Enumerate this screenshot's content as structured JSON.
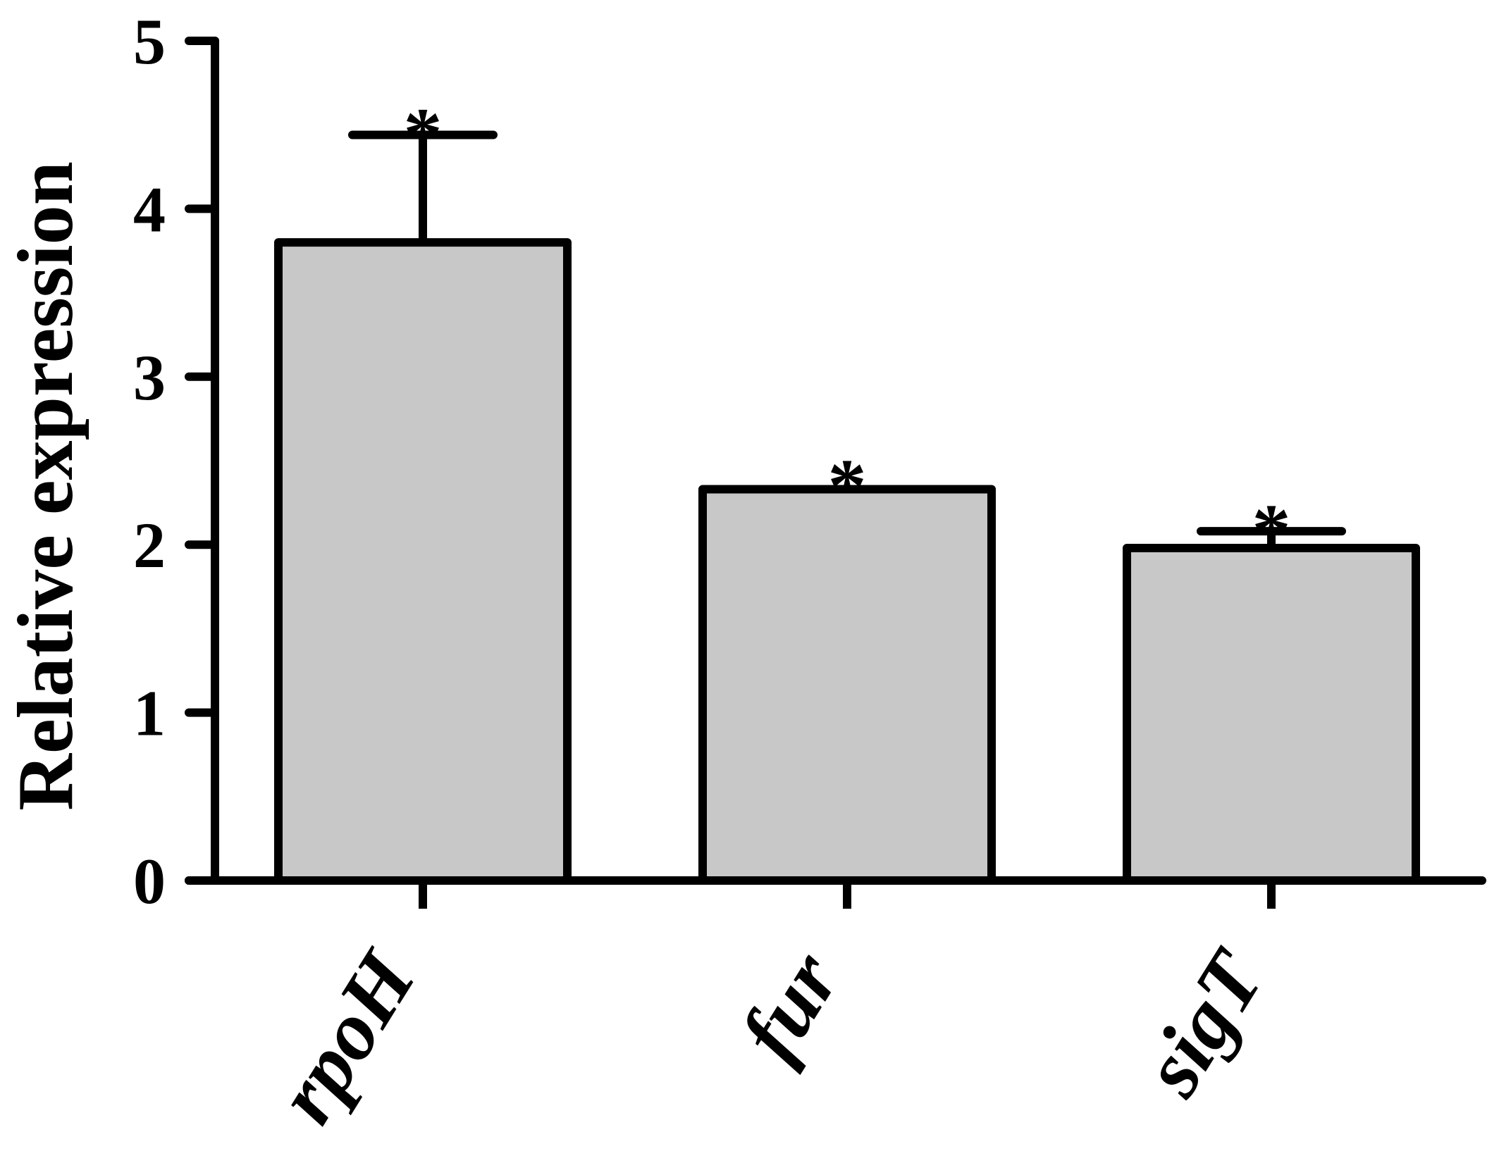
{
  "chart_data": {
    "type": "bar",
    "title": "",
    "xlabel": "",
    "ylabel": "Relative expression",
    "ylim": [
      0,
      5
    ],
    "yticks": [
      0,
      1,
      2,
      3,
      4,
      5
    ],
    "categories": [
      "rpoH",
      "fur",
      "sigT"
    ],
    "values": [
      3.8,
      2.33,
      1.98
    ],
    "error_upper": [
      0.64,
      0.02,
      0.1
    ],
    "annotations": [
      "*",
      "*",
      "*"
    ],
    "grid": false,
    "legend": "none",
    "colors": {
      "bar_fill": "#c8c8c8",
      "bar_stroke": "#000000",
      "axis": "#000000"
    }
  }
}
